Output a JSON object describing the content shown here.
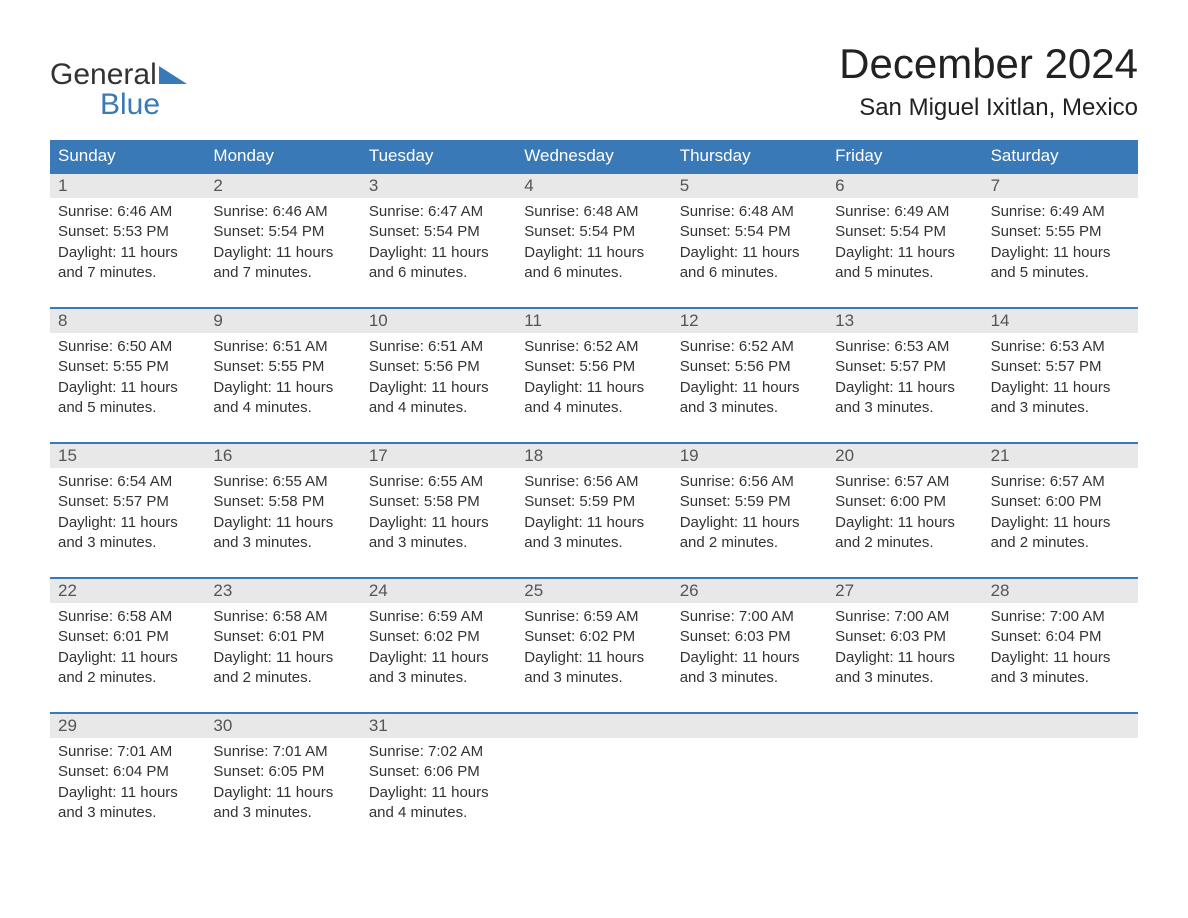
{
  "logo": {
    "text_general": "General",
    "text_blue": "Blue",
    "tri_color": "#3a79b7"
  },
  "title": "December 2024",
  "subtitle": "San Miguel Ixitlan, Mexico",
  "colors": {
    "header_bg": "#3a79b7",
    "header_fg": "#ffffff",
    "daynum_bg": "#e8e8e8",
    "daynum_fg": "#555555",
    "text": "#333333",
    "page_bg": "#ffffff"
  },
  "day_names": [
    "Sunday",
    "Monday",
    "Tuesday",
    "Wednesday",
    "Thursday",
    "Friday",
    "Saturday"
  ],
  "weeks": [
    [
      {
        "n": "1",
        "sr": "Sunrise: 6:46 AM",
        "ss": "Sunset: 5:53 PM",
        "d1": "Daylight: 11 hours",
        "d2": "and 7 minutes."
      },
      {
        "n": "2",
        "sr": "Sunrise: 6:46 AM",
        "ss": "Sunset: 5:54 PM",
        "d1": "Daylight: 11 hours",
        "d2": "and 7 minutes."
      },
      {
        "n": "3",
        "sr": "Sunrise: 6:47 AM",
        "ss": "Sunset: 5:54 PM",
        "d1": "Daylight: 11 hours",
        "d2": "and 6 minutes."
      },
      {
        "n": "4",
        "sr": "Sunrise: 6:48 AM",
        "ss": "Sunset: 5:54 PM",
        "d1": "Daylight: 11 hours",
        "d2": "and 6 minutes."
      },
      {
        "n": "5",
        "sr": "Sunrise: 6:48 AM",
        "ss": "Sunset: 5:54 PM",
        "d1": "Daylight: 11 hours",
        "d2": "and 6 minutes."
      },
      {
        "n": "6",
        "sr": "Sunrise: 6:49 AM",
        "ss": "Sunset: 5:54 PM",
        "d1": "Daylight: 11 hours",
        "d2": "and 5 minutes."
      },
      {
        "n": "7",
        "sr": "Sunrise: 6:49 AM",
        "ss": "Sunset: 5:55 PM",
        "d1": "Daylight: 11 hours",
        "d2": "and 5 minutes."
      }
    ],
    [
      {
        "n": "8",
        "sr": "Sunrise: 6:50 AM",
        "ss": "Sunset: 5:55 PM",
        "d1": "Daylight: 11 hours",
        "d2": "and 5 minutes."
      },
      {
        "n": "9",
        "sr": "Sunrise: 6:51 AM",
        "ss": "Sunset: 5:55 PM",
        "d1": "Daylight: 11 hours",
        "d2": "and 4 minutes."
      },
      {
        "n": "10",
        "sr": "Sunrise: 6:51 AM",
        "ss": "Sunset: 5:56 PM",
        "d1": "Daylight: 11 hours",
        "d2": "and 4 minutes."
      },
      {
        "n": "11",
        "sr": "Sunrise: 6:52 AM",
        "ss": "Sunset: 5:56 PM",
        "d1": "Daylight: 11 hours",
        "d2": "and 4 minutes."
      },
      {
        "n": "12",
        "sr": "Sunrise: 6:52 AM",
        "ss": "Sunset: 5:56 PM",
        "d1": "Daylight: 11 hours",
        "d2": "and 3 minutes."
      },
      {
        "n": "13",
        "sr": "Sunrise: 6:53 AM",
        "ss": "Sunset: 5:57 PM",
        "d1": "Daylight: 11 hours",
        "d2": "and 3 minutes."
      },
      {
        "n": "14",
        "sr": "Sunrise: 6:53 AM",
        "ss": "Sunset: 5:57 PM",
        "d1": "Daylight: 11 hours",
        "d2": "and 3 minutes."
      }
    ],
    [
      {
        "n": "15",
        "sr": "Sunrise: 6:54 AM",
        "ss": "Sunset: 5:57 PM",
        "d1": "Daylight: 11 hours",
        "d2": "and 3 minutes."
      },
      {
        "n": "16",
        "sr": "Sunrise: 6:55 AM",
        "ss": "Sunset: 5:58 PM",
        "d1": "Daylight: 11 hours",
        "d2": "and 3 minutes."
      },
      {
        "n": "17",
        "sr": "Sunrise: 6:55 AM",
        "ss": "Sunset: 5:58 PM",
        "d1": "Daylight: 11 hours",
        "d2": "and 3 minutes."
      },
      {
        "n": "18",
        "sr": "Sunrise: 6:56 AM",
        "ss": "Sunset: 5:59 PM",
        "d1": "Daylight: 11 hours",
        "d2": "and 3 minutes."
      },
      {
        "n": "19",
        "sr": "Sunrise: 6:56 AM",
        "ss": "Sunset: 5:59 PM",
        "d1": "Daylight: 11 hours",
        "d2": "and 2 minutes."
      },
      {
        "n": "20",
        "sr": "Sunrise: 6:57 AM",
        "ss": "Sunset: 6:00 PM",
        "d1": "Daylight: 11 hours",
        "d2": "and 2 minutes."
      },
      {
        "n": "21",
        "sr": "Sunrise: 6:57 AM",
        "ss": "Sunset: 6:00 PM",
        "d1": "Daylight: 11 hours",
        "d2": "and 2 minutes."
      }
    ],
    [
      {
        "n": "22",
        "sr": "Sunrise: 6:58 AM",
        "ss": "Sunset: 6:01 PM",
        "d1": "Daylight: 11 hours",
        "d2": "and 2 minutes."
      },
      {
        "n": "23",
        "sr": "Sunrise: 6:58 AM",
        "ss": "Sunset: 6:01 PM",
        "d1": "Daylight: 11 hours",
        "d2": "and 2 minutes."
      },
      {
        "n": "24",
        "sr": "Sunrise: 6:59 AM",
        "ss": "Sunset: 6:02 PM",
        "d1": "Daylight: 11 hours",
        "d2": "and 3 minutes."
      },
      {
        "n": "25",
        "sr": "Sunrise: 6:59 AM",
        "ss": "Sunset: 6:02 PM",
        "d1": "Daylight: 11 hours",
        "d2": "and 3 minutes."
      },
      {
        "n": "26",
        "sr": "Sunrise: 7:00 AM",
        "ss": "Sunset: 6:03 PM",
        "d1": "Daylight: 11 hours",
        "d2": "and 3 minutes."
      },
      {
        "n": "27",
        "sr": "Sunrise: 7:00 AM",
        "ss": "Sunset: 6:03 PM",
        "d1": "Daylight: 11 hours",
        "d2": "and 3 minutes."
      },
      {
        "n": "28",
        "sr": "Sunrise: 7:00 AM",
        "ss": "Sunset: 6:04 PM",
        "d1": "Daylight: 11 hours",
        "d2": "and 3 minutes."
      }
    ],
    [
      {
        "n": "29",
        "sr": "Sunrise: 7:01 AM",
        "ss": "Sunset: 6:04 PM",
        "d1": "Daylight: 11 hours",
        "d2": "and 3 minutes."
      },
      {
        "n": "30",
        "sr": "Sunrise: 7:01 AM",
        "ss": "Sunset: 6:05 PM",
        "d1": "Daylight: 11 hours",
        "d2": "and 3 minutes."
      },
      {
        "n": "31",
        "sr": "Sunrise: 7:02 AM",
        "ss": "Sunset: 6:06 PM",
        "d1": "Daylight: 11 hours",
        "d2": "and 4 minutes."
      },
      null,
      null,
      null,
      null
    ]
  ]
}
